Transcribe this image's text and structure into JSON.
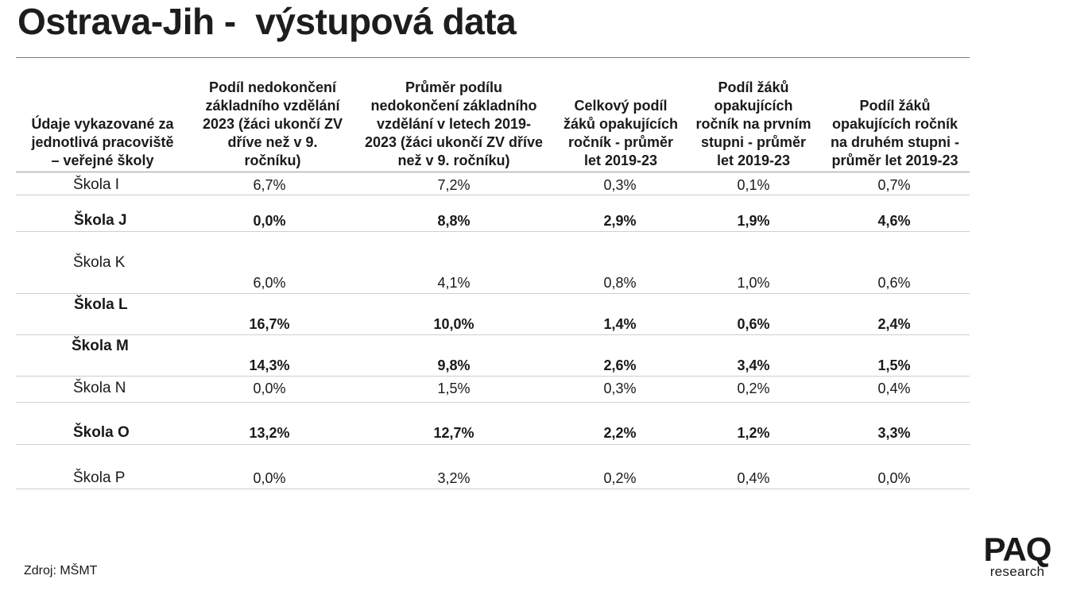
{
  "title": "Ostrava-Jih -  výstupová data",
  "columns": [
    "Údaje vykazované za\njednotlivá pracoviště\n– veřejné školy",
    "Podíl nedokončení\nzákladního vzdělání\n2023 (žáci ukončí ZV\ndříve než v 9.\nročníku)",
    "Průměr podílu\nnedokončení základního\nvzdělání v letech 2019-\n2023 (žáci ukončí ZV dříve\nnež v 9. ročníku)",
    "Celkový podíl\nžáků opakujících\nročník - průměr\nlet 2019-23",
    "Podíl žáků\nopakujících\nročník na prvním\nstupni - průměr\nlet 2019-23",
    "Podíl žáků\nopakujících ročník\nna druhém stupni -\nprůměr let 2019-23"
  ],
  "rows": [
    {
      "name": "Škola I",
      "bold": false,
      "values": [
        "6,7%",
        "7,2%",
        "0,3%",
        "0,1%",
        "0,7%"
      ]
    },
    {
      "name": "Škola J",
      "bold": true,
      "values": [
        "0,0%",
        "8,8%",
        "2,9%",
        "1,9%",
        "4,6%"
      ]
    },
    {
      "name": "Škola K",
      "bold": false,
      "values": [
        "6,0%",
        "4,1%",
        "0,8%",
        "1,0%",
        "0,6%"
      ]
    },
    {
      "name": "Škola L",
      "bold": true,
      "values": [
        "16,7%",
        "10,0%",
        "1,4%",
        "0,6%",
        "2,4%"
      ]
    },
    {
      "name": "Škola M",
      "bold": true,
      "values": [
        "14,3%",
        "9,8%",
        "2,6%",
        "3,4%",
        "1,5%"
      ]
    },
    {
      "name": "Škola N",
      "bold": false,
      "values": [
        "0,0%",
        "1,5%",
        "0,3%",
        "0,2%",
        "0,4%"
      ]
    },
    {
      "name": "Škola O",
      "bold": true,
      "values": [
        "13,2%",
        "12,7%",
        "2,2%",
        "1,2%",
        "3,3%"
      ]
    },
    {
      "name": "Škola P",
      "bold": false,
      "values": [
        "0,0%",
        "3,2%",
        "0,2%",
        "0,4%",
        "0,0%"
      ]
    }
  ],
  "source": "Zdroj: MŠMT",
  "logo": {
    "main": "PAQ",
    "sub": "research"
  }
}
